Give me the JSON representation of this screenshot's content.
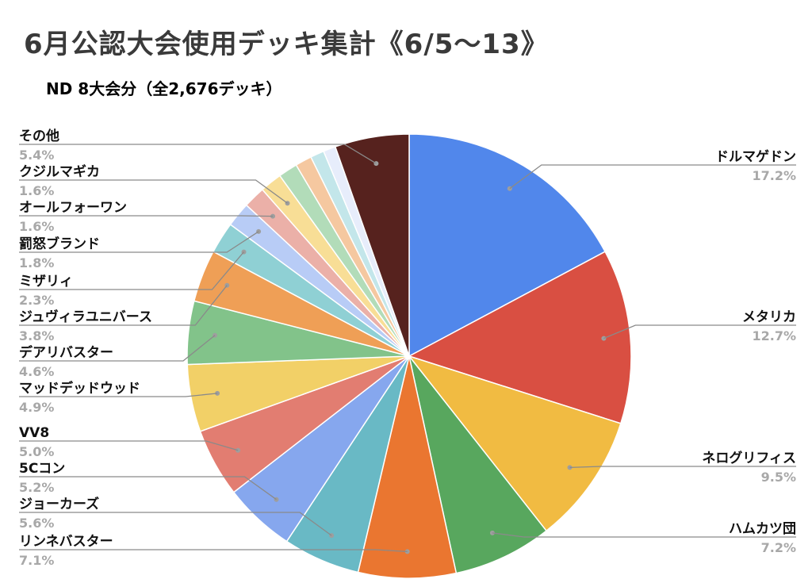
{
  "title": "6月公認大会使用デッキ集計《6/5〜13》",
  "subtitle": "ND 8大会分（全2,676デッキ）",
  "chart_data": {
    "type": "pie",
    "start": "12 o'clock",
    "direction": "clockwise",
    "slices": [
      {
        "label": "ドルマゲドン",
        "value": 17.2,
        "display": "17.2%",
        "color": "#5187eb"
      },
      {
        "label": "メタリカ",
        "value": 12.7,
        "display": "12.7%",
        "color": "#d94f42"
      },
      {
        "label": "ネログリフィス",
        "value": 9.5,
        "display": "9.5%",
        "color": "#f1bb42"
      },
      {
        "label": "ハムカツ団",
        "value": 7.2,
        "display": "7.2%",
        "color": "#58a75e"
      },
      {
        "label": "リンネバスター",
        "value": 7.1,
        "display": "7.1%",
        "color": "#ea7630"
      },
      {
        "label": "ジョーカーズ",
        "value": 5.6,
        "display": "5.6%",
        "color": "#69b9c5"
      },
      {
        "label": "5Cコン",
        "value": 5.2,
        "display": "5.2%",
        "color": "#86a7ee"
      },
      {
        "label": "VV8",
        "value": 5.0,
        "display": "5.0%",
        "color": "#e27d71"
      },
      {
        "label": "マッドデッドウッド",
        "value": 4.9,
        "display": "4.9%",
        "color": "#f2d067"
      },
      {
        "label": "デアリバスター",
        "value": 4.6,
        "display": "4.6%",
        "color": "#82c38a"
      },
      {
        "label": "ジュヴィラユニバース",
        "value": 3.8,
        "display": "3.8%",
        "color": "#ef9f56"
      },
      {
        "label": "ミザリィ",
        "value": 2.3,
        "display": "2.3%",
        "color": "#8fd0d4"
      },
      {
        "label": "罰怒ブランド",
        "value": 1.8,
        "display": "1.8%",
        "color": "#b8ccf6"
      },
      {
        "label": "オールフォーワン",
        "value": 1.6,
        "display": "1.6%",
        "color": "#ebb0a8"
      },
      {
        "label": "クジルマギカ",
        "value": 1.6,
        "display": "1.6%",
        "color": "#f8de96"
      },
      {
        "label": "",
        "value": 1.4,
        "display": "",
        "color": "#b2dcb9"
      },
      {
        "label": "",
        "value": 1.2,
        "display": "",
        "color": "#f5c8a0"
      },
      {
        "label": "",
        "value": 1.0,
        "display": "",
        "color": "#c3e6ea"
      },
      {
        "label": "",
        "value": 0.9,
        "display": "",
        "color": "#e7edfb"
      },
      {
        "label": "その他",
        "value": 5.4,
        "display": "5.4%",
        "color": "#56221e"
      }
    ]
  }
}
